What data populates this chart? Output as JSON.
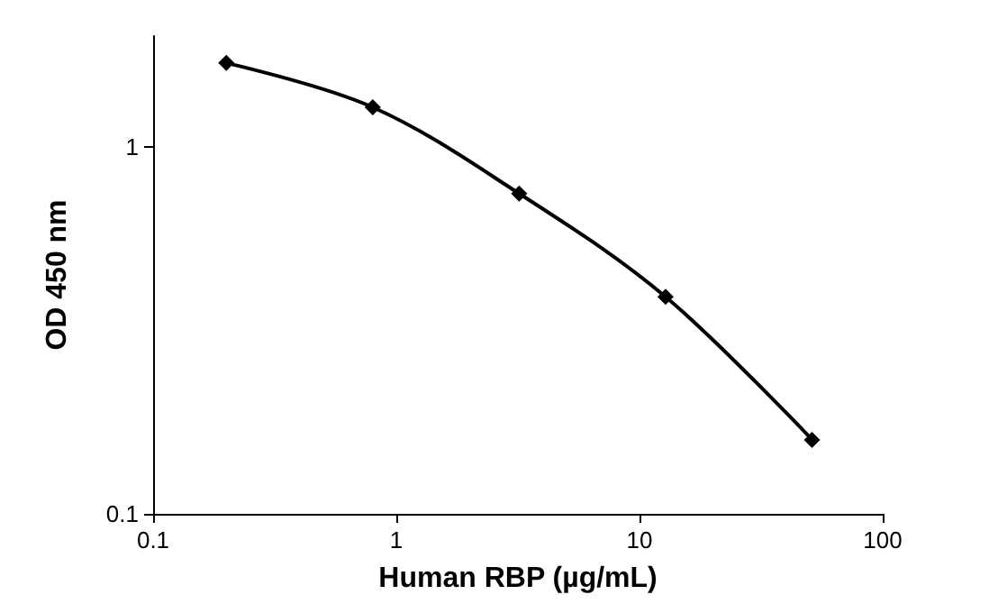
{
  "chart_data": {
    "type": "line",
    "xlabel": "Human RBP (µg/mL)",
    "ylabel": "OD 450 nm",
    "x": [
      0.2,
      0.8,
      3.2,
      12.8,
      51.2
    ],
    "series": [
      {
        "color": "#000000",
        "values": [
          1.69,
          1.28,
          0.745,
          0.39,
          0.159
        ]
      }
    ],
    "log": "xy",
    "xlim": [
      0.1,
      100
    ],
    "xticks": [
      0.1,
      1,
      10,
      100
    ],
    "ylim": [
      0.1,
      2
    ],
    "yticks": [
      0.1,
      1
    ],
    "marker": "diamond",
    "line_style": "solid"
  }
}
